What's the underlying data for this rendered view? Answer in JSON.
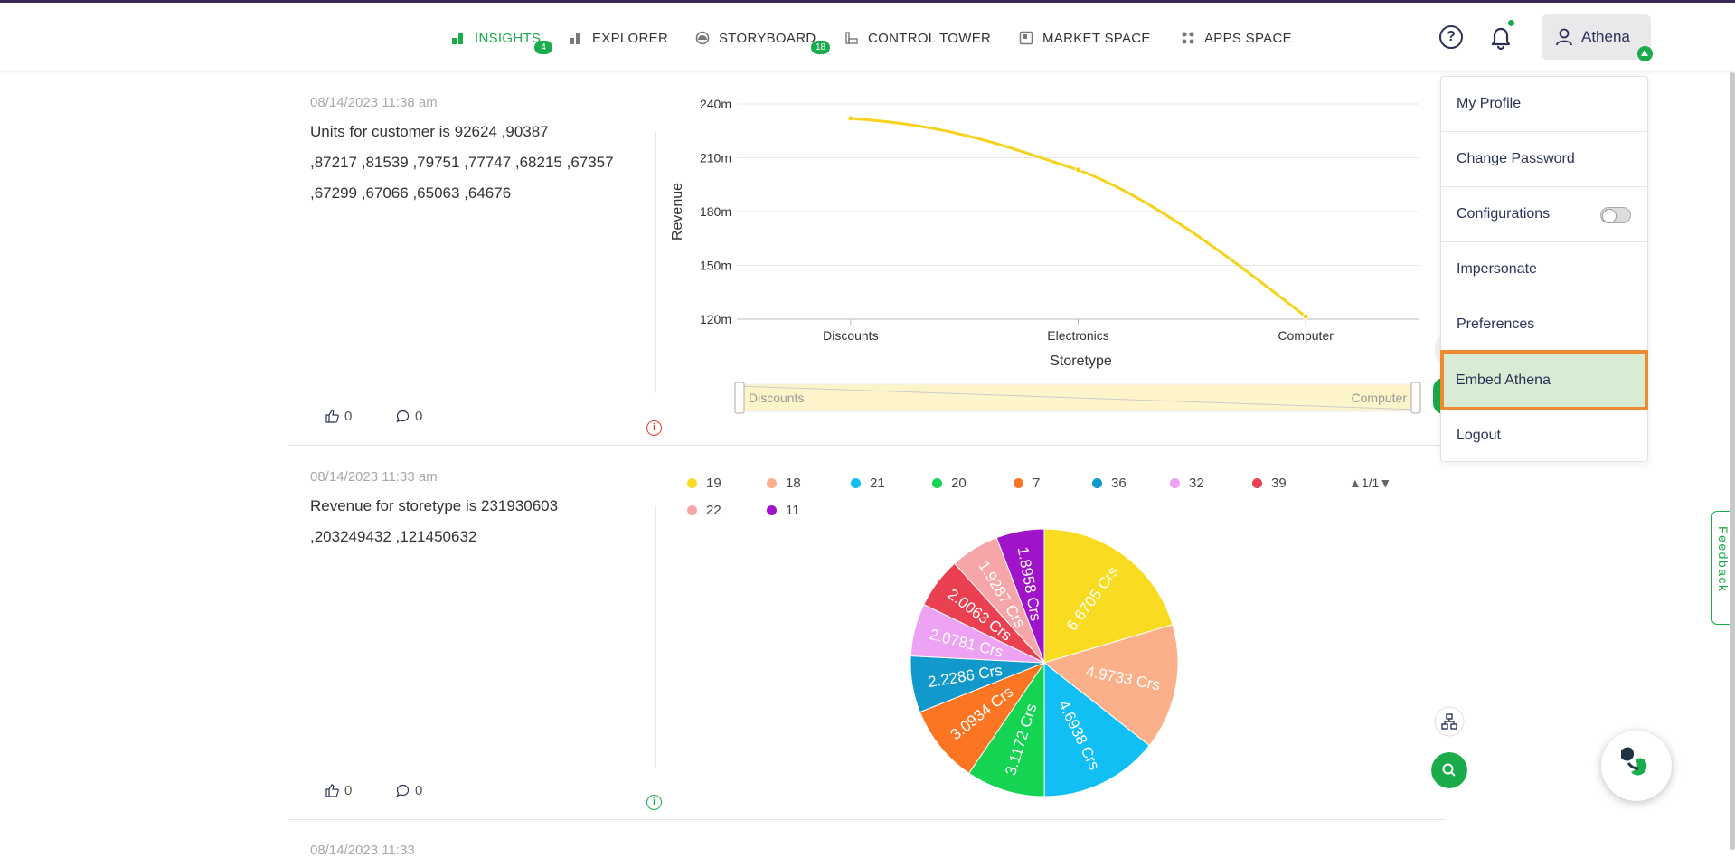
{
  "nav": {
    "items": [
      {
        "label": "INSIGHTS",
        "badge": "4",
        "active": true
      },
      {
        "label": "EXPLORER"
      },
      {
        "label": "STORYBOARD",
        "badge": "18"
      },
      {
        "label": "CONTROL TOWER"
      },
      {
        "label": "MARKET SPACE"
      },
      {
        "label": "APPS SPACE"
      }
    ],
    "user": "Athena"
  },
  "menu": {
    "items": [
      "My Profile",
      "Change Password",
      "Configurations",
      "Impersonate",
      "Preferences",
      "Embed Athena",
      "Logout"
    ],
    "configurations_toggle": false,
    "highlighted": "Embed Athena"
  },
  "cards": [
    {
      "date": "08/14/2023 11:38 am",
      "text_lines": [
        "Units for customer is 92624 ,90387",
        ",87217 ,81539 ,79751 ,77747 ,68215 ,67357",
        ",67299 ,67066 ,65063 ,64676"
      ],
      "likes": "0",
      "comments": "0"
    },
    {
      "date": "08/14/2023 11:33 am",
      "text_lines": [
        "Revenue for storetype is 231930603",
        ",203249432 ,121450632"
      ],
      "likes": "0",
      "comments": "0"
    },
    {
      "date": "08/14/2023 11:33"
    }
  ],
  "chart_data": [
    {
      "type": "line",
      "categories": [
        "Discounts",
        "Electronics",
        "Computer"
      ],
      "series": [
        {
          "values": [
            231930603,
            203249432,
            121450632
          ]
        }
      ],
      "xlabel": "Storetype",
      "ylabel": "Revenue",
      "yticks": [
        "120m",
        "150m",
        "180m",
        "210m",
        "240m"
      ],
      "ylim": [
        120000000,
        240000000
      ],
      "color": "#f7d21b",
      "slider": {
        "start_label": "Discounts",
        "end_label": "Computer"
      },
      "grid": true
    },
    {
      "type": "pie",
      "labels": [
        "19",
        "18",
        "21",
        "20",
        "7",
        "36",
        "32",
        "39",
        "22",
        "11"
      ],
      "values": [
        6.6705,
        4.9733,
        4.6938,
        3.1172,
        3.0934,
        2.2286,
        2.0781,
        2.0063,
        1.9287,
        1.8958
      ],
      "data_labels": [
        "6.6705 Crs",
        "4.9733 Crs",
        "4.6938 Crs",
        "3.1172 Crs",
        "3.0934 Crs",
        "2.2286 Crs",
        "2.0781 Crs",
        "2.0063 Crs",
        "1.9287 Crs",
        "1.8958 Crs"
      ],
      "colors": [
        "#f9dc22",
        "#fbb08a",
        "#12bff5",
        "#14d452",
        "#fb7522",
        "#1199cc",
        "#eea2f4",
        "#eb4052",
        "#f6a6a8",
        "#a013c9"
      ],
      "legend_position": "top",
      "pager": "1/1"
    }
  ],
  "feedback_label": "Feedback"
}
